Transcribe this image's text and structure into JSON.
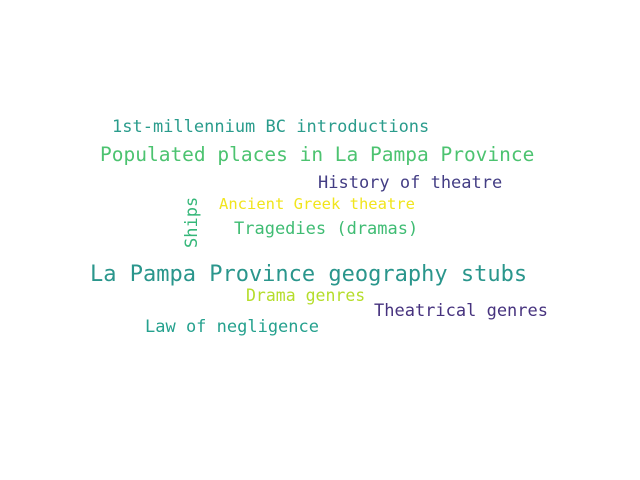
{
  "word_cloud": {
    "words": [
      {
        "text": "1st-millennium BC introductions",
        "color": "#2a9c8c"
      },
      {
        "text": "Populated places in La Pampa Province",
        "color": "#4cc370"
      },
      {
        "text": "History of theatre",
        "color": "#433d84"
      },
      {
        "text": "Ancient Greek theatre",
        "color": "#f1e51d"
      },
      {
        "text": "Tragedies (dramas)",
        "color": "#3fbc73"
      },
      {
        "text": "La Pampa Province geography stubs",
        "color": "#2a968c"
      },
      {
        "text": "Drama genres",
        "color": "#b5dd2b"
      },
      {
        "text": "Theatrical genres",
        "color": "#46327e"
      },
      {
        "text": "Law of negligence",
        "color": "#25a18e"
      },
      {
        "text": "Ships",
        "color": "#35b779"
      }
    ]
  }
}
